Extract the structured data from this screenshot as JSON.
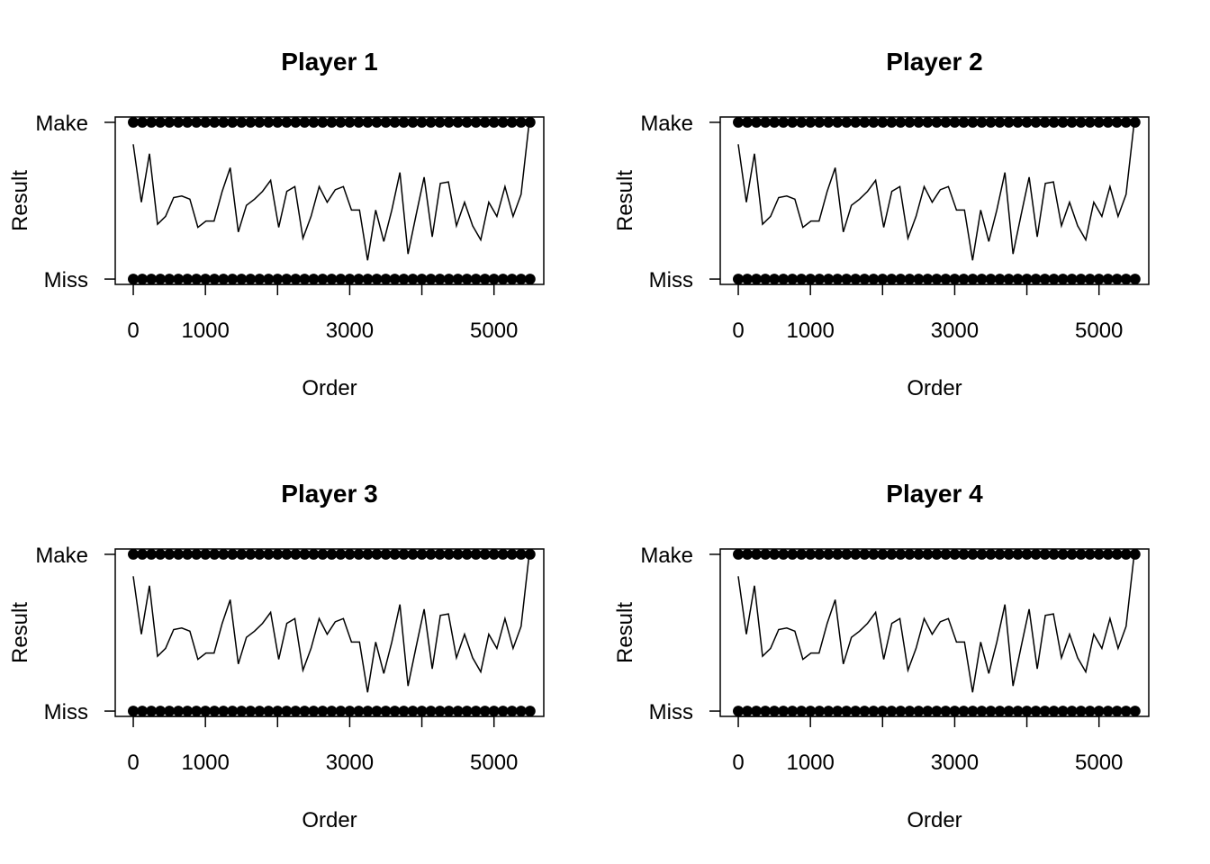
{
  "chart_data": [
    {
      "type": "scatter",
      "title": "Player 1",
      "x_label": "Order",
      "y_label": "Result",
      "color": "#000000",
      "xlim": [
        -250,
        5690
      ],
      "ylim": [
        -0.034,
        1.034
      ],
      "xticks": [
        0,
        {
          "value": 1000,
          "label": "1000"
        },
        {
          "value": 2000,
          "label": null
        },
        {
          "value": 3000,
          "label": "3000"
        },
        {
          "value": 4000,
          "label": null
        },
        {
          "value": 5000,
          "label": "5000"
        }
      ],
      "yticks": [
        {
          "value": 0,
          "label": "Miss"
        },
        {
          "value": 1,
          "label": "Make"
        }
      ],
      "points_x": [
        0,
        125,
        250,
        375,
        500,
        625,
        750,
        875,
        1000,
        1125,
        1250,
        1375,
        1500,
        1625,
        1750,
        1875,
        2000,
        2125,
        2250,
        2375,
        2500,
        2625,
        2750,
        2875,
        3000,
        3125,
        3250,
        3375,
        3500,
        3625,
        3750,
        3875,
        4000,
        4125,
        4250,
        4375,
        4500,
        4625,
        4750,
        4875,
        5000,
        5125,
        5250,
        5375,
        5500
      ],
      "make_values": [
        1,
        1,
        1,
        1,
        1,
        1,
        1,
        1,
        1,
        1,
        1,
        1,
        1,
        1,
        1,
        1,
        1,
        1,
        1,
        1,
        1,
        1,
        1,
        1,
        1,
        1,
        1,
        1,
        1,
        1,
        1,
        1,
        1,
        1,
        1,
        1,
        1,
        1,
        1,
        1,
        1,
        1,
        1,
        1,
        1
      ],
      "miss_values": [
        0,
        0,
        0,
        0,
        0,
        0,
        0,
        0,
        0,
        0,
        0,
        0,
        0,
        0,
        0,
        0,
        0,
        0,
        0,
        0,
        0,
        0,
        0,
        0,
        0,
        0,
        0,
        0,
        0,
        0,
        0,
        0,
        0,
        0,
        0,
        0,
        0,
        0,
        0,
        0,
        0,
        0,
        0,
        0,
        0
      ],
      "line_x": [
        0,
        112,
        224,
        336,
        448,
        560,
        672,
        784,
        896,
        1008,
        1120,
        1232,
        1344,
        1456,
        1568,
        1680,
        1792,
        1904,
        2016,
        2128,
        2240,
        2352,
        2464,
        2576,
        2688,
        2800,
        2912,
        3024,
        3136,
        3248,
        3360,
        3472,
        3584,
        3696,
        3808,
        3920,
        4032,
        4144,
        4256,
        4368,
        4480,
        4592,
        4704,
        4816,
        4928,
        5040,
        5152,
        5264,
        5376,
        5488
      ],
      "line_values": [
        0.86,
        0.49,
        0.8,
        0.35,
        0.4,
        0.52,
        0.53,
        0.51,
        0.33,
        0.37,
        0.37,
        0.56,
        0.71,
        0.3,
        0.47,
        0.51,
        0.56,
        0.63,
        0.33,
        0.56,
        0.59,
        0.26,
        0.4,
        0.59,
        0.49,
        0.57,
        0.59,
        0.44,
        0.44,
        0.12,
        0.44,
        0.24,
        0.44,
        0.68,
        0.16,
        0.41,
        0.65,
        0.27,
        0.61,
        0.62,
        0.34,
        0.49,
        0.34,
        0.25,
        0.49,
        0.4,
        0.59,
        0.4,
        0.54,
        1.0
      ]
    },
    {
      "type": "scatter",
      "title": "Player 2",
      "x_label": "Order",
      "y_label": "Result",
      "color": "#000000",
      "xlim": [
        -250,
        5690
      ],
      "ylim": [
        -0.034,
        1.034
      ],
      "xticks": [
        0,
        {
          "value": 1000,
          "label": "1000"
        },
        {
          "value": 2000,
          "label": null
        },
        {
          "value": 3000,
          "label": "3000"
        },
        {
          "value": 4000,
          "label": null
        },
        {
          "value": 5000,
          "label": "5000"
        }
      ],
      "yticks": [
        {
          "value": 0,
          "label": "Miss"
        },
        {
          "value": 1,
          "label": "Make"
        }
      ],
      "points_x": [
        0,
        125,
        250,
        375,
        500,
        625,
        750,
        875,
        1000,
        1125,
        1250,
        1375,
        1500,
        1625,
        1750,
        1875,
        2000,
        2125,
        2250,
        2375,
        2500,
        2625,
        2750,
        2875,
        3000,
        3125,
        3250,
        3375,
        3500,
        3625,
        3750,
        3875,
        4000,
        4125,
        4250,
        4375,
        4500,
        4625,
        4750,
        4875,
        5000,
        5125,
        5250,
        5375,
        5500
      ],
      "make_values": [
        1,
        1,
        1,
        1,
        1,
        1,
        1,
        1,
        1,
        1,
        1,
        1,
        1,
        1,
        1,
        1,
        1,
        1,
        1,
        1,
        1,
        1,
        1,
        1,
        1,
        1,
        1,
        1,
        1,
        1,
        1,
        1,
        1,
        1,
        1,
        1,
        1,
        1,
        1,
        1,
        1,
        1,
        1,
        1,
        1
      ],
      "miss_values": [
        0,
        0,
        0,
        0,
        0,
        0,
        0,
        0,
        0,
        0,
        0,
        0,
        0,
        0,
        0,
        0,
        0,
        0,
        0,
        0,
        0,
        0,
        0,
        0,
        0,
        0,
        0,
        0,
        0,
        0,
        0,
        0,
        0,
        0,
        0,
        0,
        0,
        0,
        0,
        0,
        0,
        0,
        0,
        0,
        0
      ],
      "line_x": [
        0,
        112,
        224,
        336,
        448,
        560,
        672,
        784,
        896,
        1008,
        1120,
        1232,
        1344,
        1456,
        1568,
        1680,
        1792,
        1904,
        2016,
        2128,
        2240,
        2352,
        2464,
        2576,
        2688,
        2800,
        2912,
        3024,
        3136,
        3248,
        3360,
        3472,
        3584,
        3696,
        3808,
        3920,
        4032,
        4144,
        4256,
        4368,
        4480,
        4592,
        4704,
        4816,
        4928,
        5040,
        5152,
        5264,
        5376,
        5488
      ],
      "line_values": [
        0.86,
        0.49,
        0.8,
        0.35,
        0.4,
        0.52,
        0.53,
        0.51,
        0.33,
        0.37,
        0.37,
        0.56,
        0.71,
        0.3,
        0.47,
        0.51,
        0.56,
        0.63,
        0.33,
        0.56,
        0.59,
        0.26,
        0.4,
        0.59,
        0.49,
        0.57,
        0.59,
        0.44,
        0.44,
        0.12,
        0.44,
        0.24,
        0.44,
        0.68,
        0.16,
        0.41,
        0.65,
        0.27,
        0.61,
        0.62,
        0.34,
        0.49,
        0.34,
        0.25,
        0.49,
        0.4,
        0.59,
        0.4,
        0.54,
        1.0
      ]
    },
    {
      "type": "scatter",
      "title": "Player 3",
      "x_label": "Order",
      "y_label": "Result",
      "color": "#000000",
      "xlim": [
        -250,
        5690
      ],
      "ylim": [
        -0.034,
        1.034
      ],
      "xticks": [
        0,
        {
          "value": 1000,
          "label": "1000"
        },
        {
          "value": 2000,
          "label": null
        },
        {
          "value": 3000,
          "label": "3000"
        },
        {
          "value": 4000,
          "label": null
        },
        {
          "value": 5000,
          "label": "5000"
        }
      ],
      "yticks": [
        {
          "value": 0,
          "label": "Miss"
        },
        {
          "value": 1,
          "label": "Make"
        }
      ],
      "points_x": [
        0,
        125,
        250,
        375,
        500,
        625,
        750,
        875,
        1000,
        1125,
        1250,
        1375,
        1500,
        1625,
        1750,
        1875,
        2000,
        2125,
        2250,
        2375,
        2500,
        2625,
        2750,
        2875,
        3000,
        3125,
        3250,
        3375,
        3500,
        3625,
        3750,
        3875,
        4000,
        4125,
        4250,
        4375,
        4500,
        4625,
        4750,
        4875,
        5000,
        5125,
        5250,
        5375,
        5500
      ],
      "make_values": [
        1,
        1,
        1,
        1,
        1,
        1,
        1,
        1,
        1,
        1,
        1,
        1,
        1,
        1,
        1,
        1,
        1,
        1,
        1,
        1,
        1,
        1,
        1,
        1,
        1,
        1,
        1,
        1,
        1,
        1,
        1,
        1,
        1,
        1,
        1,
        1,
        1,
        1,
        1,
        1,
        1,
        1,
        1,
        1,
        1
      ],
      "miss_values": [
        0,
        0,
        0,
        0,
        0,
        0,
        0,
        0,
        0,
        0,
        0,
        0,
        0,
        0,
        0,
        0,
        0,
        0,
        0,
        0,
        0,
        0,
        0,
        0,
        0,
        0,
        0,
        0,
        0,
        0,
        0,
        0,
        0,
        0,
        0,
        0,
        0,
        0,
        0,
        0,
        0,
        0,
        0,
        0,
        0
      ],
      "line_x": [
        0,
        112,
        224,
        336,
        448,
        560,
        672,
        784,
        896,
        1008,
        1120,
        1232,
        1344,
        1456,
        1568,
        1680,
        1792,
        1904,
        2016,
        2128,
        2240,
        2352,
        2464,
        2576,
        2688,
        2800,
        2912,
        3024,
        3136,
        3248,
        3360,
        3472,
        3584,
        3696,
        3808,
        3920,
        4032,
        4144,
        4256,
        4368,
        4480,
        4592,
        4704,
        4816,
        4928,
        5040,
        5152,
        5264,
        5376,
        5488
      ],
      "line_values": [
        0.86,
        0.49,
        0.8,
        0.35,
        0.4,
        0.52,
        0.53,
        0.51,
        0.33,
        0.37,
        0.37,
        0.56,
        0.71,
        0.3,
        0.47,
        0.51,
        0.56,
        0.63,
        0.33,
        0.56,
        0.59,
        0.26,
        0.4,
        0.59,
        0.49,
        0.57,
        0.59,
        0.44,
        0.44,
        0.12,
        0.44,
        0.24,
        0.44,
        0.68,
        0.16,
        0.41,
        0.65,
        0.27,
        0.61,
        0.62,
        0.34,
        0.49,
        0.34,
        0.25,
        0.49,
        0.4,
        0.59,
        0.4,
        0.54,
        1.0
      ]
    },
    {
      "type": "scatter",
      "title": "Player 4",
      "x_label": "Order",
      "y_label": "Result",
      "color": "#000000",
      "xlim": [
        -250,
        5690
      ],
      "ylim": [
        -0.034,
        1.034
      ],
      "xticks": [
        0,
        {
          "value": 1000,
          "label": "1000"
        },
        {
          "value": 2000,
          "label": null
        },
        {
          "value": 3000,
          "label": "3000"
        },
        {
          "value": 4000,
          "label": null
        },
        {
          "value": 5000,
          "label": "5000"
        }
      ],
      "yticks": [
        {
          "value": 0,
          "label": "Miss"
        },
        {
          "value": 1,
          "label": "Make"
        }
      ],
      "points_x": [
        0,
        125,
        250,
        375,
        500,
        625,
        750,
        875,
        1000,
        1125,
        1250,
        1375,
        1500,
        1625,
        1750,
        1875,
        2000,
        2125,
        2250,
        2375,
        2500,
        2625,
        2750,
        2875,
        3000,
        3125,
        3250,
        3375,
        3500,
        3625,
        3750,
        3875,
        4000,
        4125,
        4250,
        4375,
        4500,
        4625,
        4750,
        4875,
        5000,
        5125,
        5250,
        5375,
        5500
      ],
      "make_values": [
        1,
        1,
        1,
        1,
        1,
        1,
        1,
        1,
        1,
        1,
        1,
        1,
        1,
        1,
        1,
        1,
        1,
        1,
        1,
        1,
        1,
        1,
        1,
        1,
        1,
        1,
        1,
        1,
        1,
        1,
        1,
        1,
        1,
        1,
        1,
        1,
        1,
        1,
        1,
        1,
        1,
        1,
        1,
        1,
        1
      ],
      "miss_values": [
        0,
        0,
        0,
        0,
        0,
        0,
        0,
        0,
        0,
        0,
        0,
        0,
        0,
        0,
        0,
        0,
        0,
        0,
        0,
        0,
        0,
        0,
        0,
        0,
        0,
        0,
        0,
        0,
        0,
        0,
        0,
        0,
        0,
        0,
        0,
        0,
        0,
        0,
        0,
        0,
        0,
        0,
        0,
        0,
        0
      ],
      "line_x": [
        0,
        112,
        224,
        336,
        448,
        560,
        672,
        784,
        896,
        1008,
        1120,
        1232,
        1344,
        1456,
        1568,
        1680,
        1792,
        1904,
        2016,
        2128,
        2240,
        2352,
        2464,
        2576,
        2688,
        2800,
        2912,
        3024,
        3136,
        3248,
        3360,
        3472,
        3584,
        3696,
        3808,
        3920,
        4032,
        4144,
        4256,
        4368,
        4480,
        4592,
        4704,
        4816,
        4928,
        5040,
        5152,
        5264,
        5376,
        5488
      ],
      "line_values": [
        0.86,
        0.49,
        0.8,
        0.35,
        0.4,
        0.52,
        0.53,
        0.51,
        0.33,
        0.37,
        0.37,
        0.56,
        0.71,
        0.3,
        0.47,
        0.51,
        0.56,
        0.63,
        0.33,
        0.56,
        0.59,
        0.26,
        0.4,
        0.59,
        0.49,
        0.57,
        0.59,
        0.44,
        0.44,
        0.12,
        0.44,
        0.24,
        0.44,
        0.68,
        0.16,
        0.41,
        0.65,
        0.27,
        0.61,
        0.62,
        0.34,
        0.49,
        0.34,
        0.25,
        0.49,
        0.4,
        0.59,
        0.4,
        0.54,
        1.0
      ]
    }
  ]
}
